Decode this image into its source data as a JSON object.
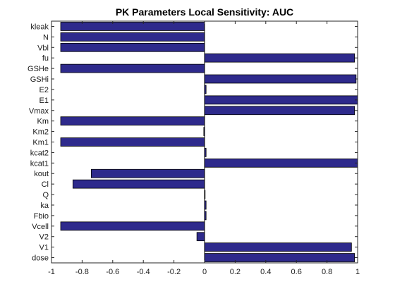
{
  "chart_data": {
    "type": "bar",
    "orientation": "horizontal",
    "title": "PK Parameters Local Sensitivity: AUC",
    "xlabel": "",
    "ylabel": "",
    "xlim": [
      -1,
      1
    ],
    "xticks": [
      -1,
      -0.8,
      -0.6,
      -0.4,
      -0.2,
      0,
      0.2,
      0.4,
      0.6,
      0.8,
      1
    ],
    "xtick_labels": [
      "-1",
      "-0.8",
      "-0.6",
      "-0.4",
      "-0.2",
      "0",
      "0.2",
      "0.4",
      "0.6",
      "0.8",
      "1"
    ],
    "grid": false,
    "bar_color": "#2e2a8c",
    "bar_edge_color": "#000000",
    "categories": [
      "kleak",
      "N",
      "Vbl",
      "fu",
      "GSHe",
      "GSHi",
      "E2",
      "E1",
      "Vmax",
      "Km",
      "Km2",
      "Km1",
      "kcat2",
      "kcat1",
      "kout",
      "Cl",
      "Q",
      "ka",
      "Fbio",
      "Vcell",
      "V2",
      "V1",
      "dose"
    ],
    "values": [
      -0.94,
      -0.94,
      -0.94,
      0.98,
      -0.94,
      0.99,
      0.01,
      1.0,
      0.98,
      -0.94,
      -0.005,
      -0.94,
      0.01,
      1.0,
      -0.74,
      -0.86,
      0.0,
      0.01,
      0.01,
      -0.94,
      -0.05,
      0.96,
      0.98
    ]
  }
}
